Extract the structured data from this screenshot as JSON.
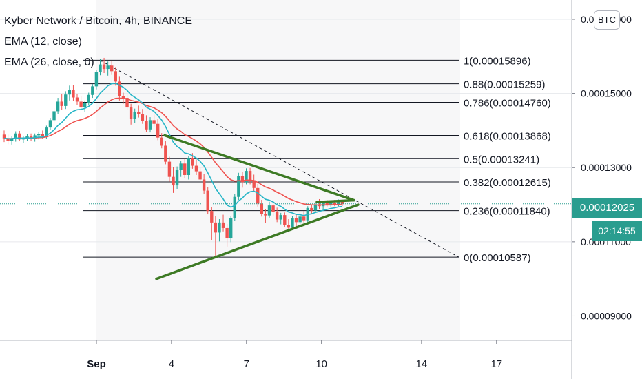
{
  "legend": {
    "title": "Kyber Network / Bitcoin, 4h, BINANCE",
    "ema12": "EMA (12, close)",
    "ema26": "EMA (26, close, 0)"
  },
  "currency_button": "BTC",
  "current_price": "0.00012025",
  "countdown": "02:14:55",
  "colors": {
    "up": "#26a69a",
    "down": "#ef5350",
    "ema12": "#26b5c7",
    "ema26": "#ef5350",
    "triangle": "#3d7a24",
    "fib": "#131722",
    "price_line": "#2a9d8f"
  },
  "chart_data": {
    "type": "candlestick",
    "symbol": "KNCBTC",
    "interval": "4h",
    "exchange": "BINANCE",
    "x_ticks": [
      "Sep",
      "4",
      "7",
      "10",
      "14",
      "17"
    ],
    "y_ticks": [
      "0.00017000",
      "0.00015000",
      "0.00013000",
      "0.00011000",
      "0.00009000"
    ],
    "y_range": [
      8.34e-05,
      0.0001752
    ],
    "fib_levels": [
      {
        "ratio": 1,
        "price": 0.00015896,
        "label": "1(0.00015896)"
      },
      {
        "ratio": 0.88,
        "price": 0.00015259,
        "label": "0.88(0.00015259)"
      },
      {
        "ratio": 0.786,
        "price": 0.0001476,
        "label": "0.786(0.00014760)"
      },
      {
        "ratio": 0.618,
        "price": 0.00013868,
        "label": "0.618(0.00013868)"
      },
      {
        "ratio": 0.5,
        "price": 0.00013241,
        "label": "0.5(0.00013241)"
      },
      {
        "ratio": 0.382,
        "price": 0.00012615,
        "label": "0.382(0.00012615)"
      },
      {
        "ratio": 0.236,
        "price": 0.0001184,
        "label": "0.236(0.00011840)"
      },
      {
        "ratio": 0,
        "price": 0.00010587,
        "label": "0(0.00010587)"
      }
    ],
    "candles": [
      [
        0.0001389,
        0.00014,
        0.0001369,
        0.0001379
      ],
      [
        0.0001379,
        0.0001389,
        0.0001363,
        0.0001372
      ],
      [
        0.0001372,
        0.0001384,
        0.0001362,
        0.0001378
      ],
      [
        0.0001378,
        0.0001398,
        0.000137,
        0.0001392
      ],
      [
        0.0001392,
        0.0001399,
        0.0001371,
        0.0001376
      ],
      [
        0.0001376,
        0.0001386,
        0.0001366,
        0.0001381
      ],
      [
        0.0001381,
        0.0001391,
        0.0001372,
        0.0001384
      ],
      [
        0.0001384,
        0.0001392,
        0.0001371,
        0.0001377
      ],
      [
        0.0001377,
        0.0001392,
        0.000137,
        0.0001387
      ],
      [
        0.0001387,
        0.0001396,
        0.0001376,
        0.000139
      ],
      [
        0.000139,
        0.00014,
        0.0001378,
        0.0001384
      ],
      [
        0.0001384,
        0.0001413,
        0.0001378,
        0.0001408
      ],
      [
        0.0001408,
        0.0001434,
        0.0001401,
        0.0001428
      ],
      [
        0.0001428,
        0.000146,
        0.0001419,
        0.0001452
      ],
      [
        0.0001452,
        0.0001488,
        0.0001444,
        0.0001478
      ],
      [
        0.0001478,
        0.0001498,
        0.0001456,
        0.0001466
      ],
      [
        0.0001466,
        0.0001506,
        0.0001458,
        0.0001497
      ],
      [
        0.0001497,
        0.0001521,
        0.0001481,
        0.000151
      ],
      [
        0.000151,
        0.0001522,
        0.000148,
        0.0001489
      ],
      [
        0.0001489,
        0.0001499,
        0.0001468,
        0.0001478
      ],
      [
        0.0001478,
        0.0001492,
        0.0001455,
        0.0001462
      ],
      [
        0.0001462,
        0.0001481,
        0.000145,
        0.0001474
      ],
      [
        0.0001474,
        0.0001502,
        0.0001468,
        0.0001496
      ],
      [
        0.0001496,
        0.0001525,
        0.0001488,
        0.0001519
      ],
      [
        0.0001519,
        0.0001563,
        0.0001511,
        0.0001558
      ],
      [
        0.0001558,
        0.0001593,
        0.0001549,
        0.0001578
      ],
      [
        0.0001578,
        0.0001596,
        0.0001555,
        0.0001566
      ],
      [
        0.0001566,
        0.0001586,
        0.0001548,
        0.0001575
      ],
      [
        0.0001575,
        0.0001588,
        0.000155,
        0.000156
      ],
      [
        0.000156,
        0.0001571,
        0.0001521,
        0.0001532
      ],
      [
        0.0001532,
        0.0001545,
        0.0001481,
        0.0001492
      ],
      [
        0.0001492,
        0.0001502,
        0.0001472,
        0.0001488
      ],
      [
        0.0001488,
        0.0001498,
        0.0001455,
        0.0001462
      ],
      [
        0.0001462,
        0.0001472,
        0.0001416,
        0.0001432
      ],
      [
        0.0001432,
        0.0001459,
        0.0001421,
        0.0001451
      ],
      [
        0.0001451,
        0.0001467,
        0.0001435,
        0.0001445
      ],
      [
        0.0001445,
        0.0001458,
        0.0001418,
        0.0001425
      ],
      [
        0.0001425,
        0.0001441,
        0.0001396,
        0.0001403
      ],
      [
        0.0001403,
        0.0001436,
        0.0001395,
        0.0001428
      ],
      [
        0.0001428,
        0.0001443,
        0.0001411,
        0.0001418
      ],
      [
        0.0001418,
        0.0001431,
        0.0001374,
        0.0001381
      ],
      [
        0.0001381,
        0.0001393,
        0.0001352,
        0.0001359
      ],
      [
        0.0001359,
        0.0001371,
        0.0001309,
        0.0001316
      ],
      [
        0.0001316,
        0.0001329,
        0.0001262,
        0.0001275
      ],
      [
        0.0001275,
        0.0001302,
        0.0001232,
        0.0001252
      ],
      [
        0.0001252,
        0.0001303,
        0.0001241,
        0.0001293
      ],
      [
        0.0001293,
        0.0001318,
        0.0001275,
        0.0001311
      ],
      [
        0.0001311,
        0.0001324,
        0.0001271,
        0.000128
      ],
      [
        0.000128,
        0.0001331,
        0.0001268,
        0.0001325
      ],
      [
        0.0001325,
        0.0001339,
        0.0001297,
        0.0001305
      ],
      [
        0.0001305,
        0.0001322,
        0.000128,
        0.000129
      ],
      [
        0.000129,
        0.0001299,
        0.0001258,
        0.0001268
      ],
      [
        0.0001268,
        0.0001282,
        0.0001228,
        0.0001238
      ],
      [
        0.0001238,
        0.0001248,
        0.0001174,
        0.0001183
      ],
      [
        0.0001183,
        0.0001194,
        0.0001105,
        0.0001152
      ],
      [
        0.0001152,
        0.0001169,
        0.0001059,
        0.0001125
      ],
      [
        0.0001125,
        0.0001161,
        0.0001101,
        0.0001152
      ],
      [
        0.0001152,
        0.0001173,
        0.0001128,
        0.0001137
      ],
      [
        0.0001137,
        0.0001148,
        0.0001087,
        0.0001109
      ],
      [
        0.0001109,
        0.000117,
        0.0001099,
        0.0001163
      ],
      [
        0.0001163,
        0.0001228,
        0.0001156,
        0.0001221
      ],
      [
        0.0001221,
        0.0001286,
        0.0001213,
        0.0001278
      ],
      [
        0.0001278,
        0.0001288,
        0.0001246,
        0.0001261
      ],
      [
        0.0001261,
        0.0001298,
        0.0001255,
        0.0001291
      ],
      [
        0.0001291,
        0.0001299,
        0.0001255,
        0.0001266
      ],
      [
        0.0001266,
        0.0001281,
        0.0001235,
        0.0001245
      ],
      [
        0.0001245,
        0.0001256,
        0.0001195,
        0.0001203
      ],
      [
        0.0001203,
        0.0001213,
        0.0001168,
        0.0001175
      ],
      [
        0.0001175,
        0.0001188,
        0.000115,
        0.0001171
      ],
      [
        0.0001171,
        0.0001208,
        0.0001165,
        0.0001198
      ],
      [
        0.0001198,
        0.0001209,
        0.000117,
        0.0001181
      ],
      [
        0.0001181,
        0.0001192,
        0.0001153,
        0.000116
      ],
      [
        0.000116,
        0.0001178,
        0.0001147,
        0.0001172
      ],
      [
        0.0001172,
        0.0001179,
        0.0001139,
        0.0001146
      ],
      [
        0.0001146,
        0.0001161,
        0.000113,
        0.0001138
      ],
      [
        0.0001138,
        0.0001169,
        0.0001132,
        0.0001163
      ],
      [
        0.0001163,
        0.0001174,
        0.0001141,
        0.0001153
      ],
      [
        0.0001153,
        0.0001176,
        0.0001147,
        0.0001168
      ],
      [
        0.0001168,
        0.0001183,
        0.0001152,
        0.0001158
      ],
      [
        0.0001158,
        0.0001196,
        0.0001153,
        0.0001191
      ],
      [
        0.0001191,
        0.00012,
        0.0001175,
        0.0001184
      ],
      [
        0.0001184,
        0.0001206,
        0.0001179,
        0.0001199
      ],
      [
        0.0001199,
        0.0001215,
        0.0001188,
        0.0001196
      ],
      [
        0.0001196,
        0.0001209,
        0.0001183,
        0.0001204
      ],
      [
        0.0001204,
        0.0001213,
        0.0001194,
        0.0001198
      ],
      [
        0.0001198,
        0.0001212,
        0.0001192,
        0.0001205
      ],
      [
        0.0001205,
        0.0001213,
        0.0001196,
        0.0001201
      ],
      [
        0.0001201,
        0.0001214,
        0.0001196,
        0.0001208
      ],
      [
        0.0001208,
        0.0001213,
        0.0001197,
        0.0001202
      ]
    ]
  }
}
